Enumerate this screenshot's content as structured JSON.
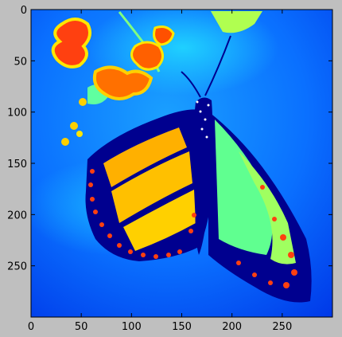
{
  "chart_data": {
    "type": "heatmap",
    "title": "",
    "xlabel": "",
    "ylabel": "",
    "xlim": [
      0,
      300
    ],
    "ylim": [
      300,
      0
    ],
    "x_ticks": [
      0,
      50,
      100,
      150,
      200,
      250
    ],
    "y_ticks": [
      0,
      50,
      100,
      150,
      200,
      250
    ],
    "x_tick_labels": [
      "0",
      "50",
      "100",
      "150",
      "200",
      "250"
    ],
    "y_tick_labels": [
      "0",
      "50",
      "100",
      "150",
      "200",
      "250"
    ],
    "colormap": "jet",
    "grid": false,
    "image_description": "Monarch butterfly on flowers, rendered through a jet colormap"
  },
  "colors": {
    "figure_background": "#bfbfbf",
    "jet_dark_blue": "#00008f",
    "jet_blue": "#0040ff",
    "jet_cyan": "#00c8ff",
    "jet_green": "#80ff80",
    "jet_yellow": "#ffe600",
    "jet_orange": "#ff8000",
    "jet_red": "#e01000"
  }
}
